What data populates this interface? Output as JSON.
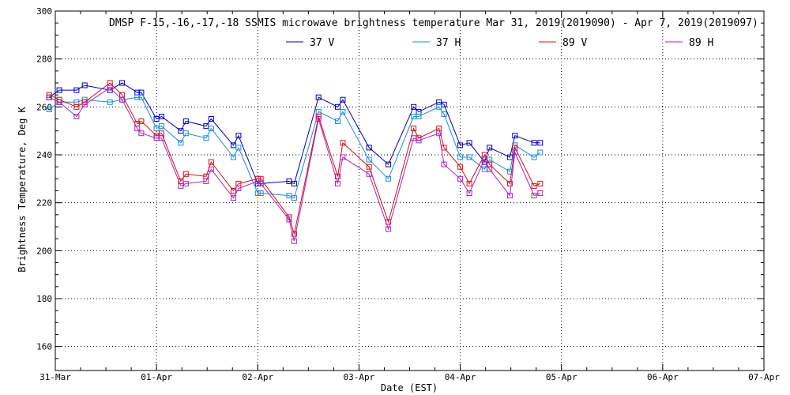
{
  "chart_data": {
    "type": "line",
    "title": "DMSP F-15,-16,-17,-18 SSMIS microwave brightness temperature Mar 31, 2019(2019090) - Apr  7, 2019(2019097)",
    "xlabel": "Date (EST)",
    "ylabel": "Brightness Temperature, Deg K",
    "xlim": [
      0,
      7
    ],
    "ylim": [
      150,
      300
    ],
    "x_ticks": [
      0,
      1,
      2,
      3,
      4,
      5,
      6,
      7
    ],
    "x_tick_labels": [
      "31-Mar",
      "01-Apr",
      "02-Apr",
      "03-Apr",
      "04-Apr",
      "05-Apr",
      "06-Apr",
      "07-Apr"
    ],
    "y_ticks": [
      160,
      180,
      200,
      220,
      240,
      260,
      280,
      300
    ],
    "y_tick_labels": [
      "160",
      "180",
      "200",
      "220",
      "240",
      "260",
      "280",
      "300"
    ],
    "grid": true,
    "legend_position": "top",
    "series": [
      {
        "name": "37 V",
        "color": "#0000b0",
        "x": [
          -0.06,
          0.04,
          0.21,
          0.29,
          0.54,
          0.66,
          0.81,
          0.85,
          1.0,
          1.05,
          1.24,
          1.29,
          1.49,
          1.54,
          1.76,
          1.81,
          2.0,
          2.03,
          2.31,
          2.36,
          2.6,
          2.79,
          2.84,
          3.1,
          3.29,
          3.54,
          3.59,
          3.79,
          3.84,
          4.0,
          4.09,
          4.24,
          4.29,
          4.49,
          4.54,
          4.73,
          4.79
        ],
        "y": [
          264,
          267,
          267,
          269,
          267,
          270,
          266,
          266,
          255,
          256,
          250,
          254,
          252,
          255,
          244,
          248,
          228,
          228,
          229,
          228,
          264,
          260,
          263,
          243,
          236,
          260,
          258,
          262,
          261,
          244,
          245,
          237,
          243,
          239,
          248,
          245,
          245
        ]
      },
      {
        "name": "37 H",
        "color": "#1a8cd8",
        "x": [
          -0.06,
          0.04,
          0.21,
          0.29,
          0.54,
          0.66,
          0.81,
          0.85,
          1.0,
          1.05,
          1.24,
          1.29,
          1.49,
          1.54,
          1.76,
          1.81,
          2.0,
          2.03,
          2.31,
          2.36,
          2.6,
          2.79,
          2.84,
          3.1,
          3.29,
          3.54,
          3.59,
          3.79,
          3.84,
          4.0,
          4.09,
          4.24,
          4.29,
          4.49,
          4.54,
          4.73,
          4.79
        ],
        "y": [
          259,
          262,
          262,
          263,
          262,
          263,
          264,
          264,
          251,
          252,
          245,
          249,
          247,
          251,
          239,
          243,
          224,
          224,
          223,
          222,
          258,
          254,
          258,
          238,
          230,
          256,
          256,
          260,
          257,
          239,
          239,
          234,
          238,
          233,
          244,
          239,
          241
        ]
      },
      {
        "name": "89 V",
        "color": "#d01010",
        "x": [
          -0.06,
          0.04,
          0.21,
          0.29,
          0.54,
          0.66,
          0.81,
          0.85,
          1.0,
          1.05,
          1.24,
          1.29,
          1.49,
          1.54,
          1.76,
          1.81,
          2.0,
          2.03,
          2.31,
          2.36,
          2.6,
          2.79,
          2.84,
          3.1,
          3.29,
          3.54,
          3.59,
          3.79,
          3.84,
          4.0,
          4.09,
          4.24,
          4.29,
          4.49,
          4.54,
          4.73,
          4.79
        ],
        "y": [
          265,
          263,
          260,
          262,
          270,
          265,
          253,
          254,
          248,
          249,
          229,
          232,
          231,
          237,
          225,
          228,
          230,
          230,
          214,
          207,
          256,
          231,
          245,
          235,
          212,
          251,
          247,
          251,
          243,
          235,
          228,
          240,
          236,
          228,
          243,
          227,
          228
        ]
      },
      {
        "name": "89 H",
        "color": "#b020c0",
        "x": [
          -0.06,
          0.04,
          0.21,
          0.29,
          0.54,
          0.66,
          0.81,
          0.85,
          1.0,
          1.05,
          1.24,
          1.29,
          1.49,
          1.54,
          1.76,
          1.81,
          2.0,
          2.03,
          2.31,
          2.36,
          2.6,
          2.79,
          2.84,
          3.1,
          3.29,
          3.54,
          3.59,
          3.79,
          3.84,
          4.0,
          4.09,
          4.24,
          4.29,
          4.49,
          4.54,
          4.73,
          4.79
        ],
        "y": [
          264,
          262,
          256,
          261,
          268,
          263,
          251,
          249,
          247,
          247,
          227,
          228,
          229,
          234,
          222,
          226,
          229,
          228,
          213,
          204,
          255,
          228,
          239,
          232,
          209,
          247,
          246,
          249,
          236,
          230,
          224,
          238,
          234,
          223,
          241,
          223,
          224
        ]
      }
    ]
  }
}
